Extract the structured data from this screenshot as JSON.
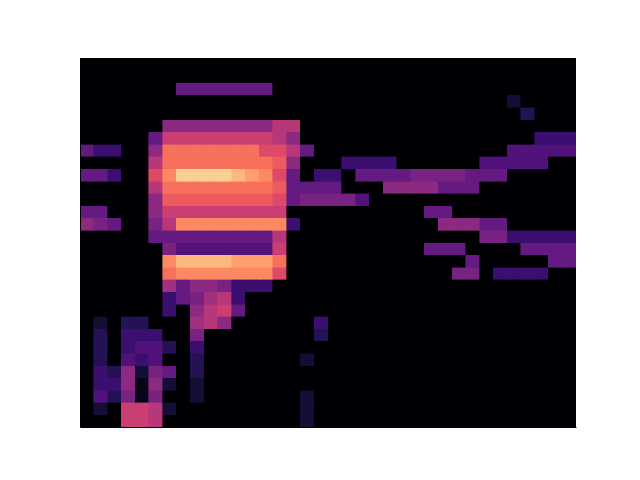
{
  "chart_data": {
    "type": "heatmap",
    "color": "magma",
    "zlim": [
      0,
      1
    ],
    "xlim": [
      0,
      36
    ],
    "ylim": [
      0,
      30
    ],
    "xticks": [],
    "yticks": [],
    "tick_labels": false,
    "z": [
      [
        0,
        0,
        0,
        0.55,
        0.55,
        0.5,
        0,
        0,
        0,
        0,
        0,
        0,
        0,
        0,
        0,
        0,
        0.1,
        0,
        0,
        0,
        0,
        0,
        0,
        0,
        0,
        0,
        0,
        0,
        0,
        0,
        0,
        0,
        0,
        0,
        0,
        0
      ],
      [
        0,
        0.1,
        0,
        0.55,
        0.55,
        0.5,
        0.1,
        0,
        0,
        0,
        0,
        0,
        0,
        0,
        0,
        0,
        0.1,
        0,
        0,
        0,
        0,
        0,
        0,
        0,
        0,
        0,
        0,
        0,
        0,
        0,
        0,
        0,
        0,
        0,
        0,
        0
      ],
      [
        0,
        0.25,
        0.15,
        0.35,
        0.05,
        0.35,
        0,
        0,
        0.1,
        0,
        0,
        0,
        0,
        0,
        0,
        0,
        0.1,
        0,
        0,
        0,
        0,
        0,
        0,
        0,
        0,
        0,
        0,
        0,
        0,
        0,
        0,
        0,
        0,
        0,
        0,
        0
      ],
      [
        0,
        0.2,
        0.2,
        0.4,
        0.05,
        0.4,
        0.1,
        0,
        0.1,
        0,
        0,
        0,
        0,
        0,
        0,
        0,
        0,
        0,
        0,
        0,
        0,
        0,
        0,
        0,
        0,
        0,
        0,
        0,
        0,
        0,
        0,
        0,
        0,
        0,
        0,
        0
      ],
      [
        0,
        0.2,
        0.15,
        0.4,
        0.1,
        0.35,
        0.3,
        0,
        0.15,
        0,
        0,
        0,
        0,
        0,
        0,
        0,
        0,
        0,
        0,
        0,
        0,
        0,
        0,
        0,
        0,
        0,
        0,
        0,
        0,
        0,
        0,
        0,
        0,
        0,
        0,
        0
      ],
      [
        0,
        0.15,
        0,
        0.25,
        0.2,
        0.25,
        0,
        0,
        0.15,
        0,
        0,
        0,
        0,
        0,
        0,
        0,
        0.1,
        0,
        0,
        0,
        0,
        0,
        0,
        0,
        0,
        0,
        0,
        0,
        0,
        0,
        0,
        0,
        0,
        0,
        0,
        0
      ],
      [
        0,
        0.15,
        0,
        0.2,
        0.25,
        0.25,
        0.15,
        0,
        0.2,
        0,
        0,
        0,
        0,
        0,
        0,
        0,
        0,
        0,
        0,
        0,
        0,
        0,
        0,
        0,
        0,
        0,
        0,
        0,
        0,
        0,
        0,
        0,
        0,
        0,
        0,
        0
      ],
      [
        0,
        0.15,
        0,
        0.2,
        0.2,
        0.2,
        0,
        0,
        0.35,
        0,
        0,
        0,
        0,
        0,
        0,
        0,
        0,
        0.15,
        0,
        0,
        0,
        0,
        0,
        0,
        0,
        0,
        0,
        0,
        0,
        0,
        0,
        0,
        0,
        0,
        0,
        0
      ],
      [
        0,
        0.1,
        0,
        0.15,
        0.15,
        0,
        0,
        0,
        0.45,
        0.5,
        0.4,
        0,
        0,
        0,
        0,
        0,
        0,
        0.2,
        0,
        0,
        0,
        0,
        0,
        0,
        0,
        0,
        0,
        0,
        0,
        0,
        0,
        0,
        0,
        0,
        0,
        0
      ],
      [
        0,
        0,
        0,
        0,
        0,
        0,
        0.2,
        0,
        0.4,
        0.5,
        0.55,
        0.3,
        0,
        0,
        0,
        0,
        0,
        0,
        0,
        0,
        0,
        0,
        0,
        0,
        0,
        0,
        0,
        0,
        0,
        0,
        0,
        0,
        0,
        0,
        0,
        0
      ],
      [
        0,
        0,
        0,
        0,
        0,
        0,
        0.2,
        0.3,
        0.35,
        0.45,
        0.5,
        0.2,
        0,
        0,
        0,
        0,
        0,
        0,
        0,
        0,
        0,
        0,
        0,
        0,
        0,
        0,
        0,
        0,
        0,
        0,
        0,
        0,
        0,
        0,
        0,
        0
      ],
      [
        0,
        0,
        0,
        0,
        0,
        0,
        0.45,
        0.3,
        0.4,
        0.4,
        0.35,
        0.2,
        0.2,
        0.2,
        0,
        0,
        0,
        0,
        0,
        0,
        0,
        0,
        0,
        0,
        0,
        0,
        0,
        0,
        0,
        0,
        0,
        0,
        0,
        0,
        0,
        0
      ],
      [
        0,
        0,
        0,
        0,
        0,
        0,
        0.7,
        0.75,
        0.75,
        0.75,
        0.75,
        0.75,
        0.75,
        0.75,
        0.6,
        0,
        0,
        0,
        0,
        0,
        0,
        0,
        0,
        0,
        0,
        0,
        0,
        0.35,
        0.35,
        0,
        0.2,
        0.2,
        0.2,
        0.2,
        0,
        0
      ],
      [
        0,
        0,
        0,
        0,
        0,
        0,
        0.75,
        0.85,
        0.85,
        0.85,
        0.85,
        0.8,
        0.8,
        0.8,
        0.7,
        0,
        0,
        0,
        0,
        0,
        0,
        0,
        0,
        0,
        0,
        0,
        0,
        0,
        0.3,
        0,
        0,
        0,
        0,
        0,
        0.3,
        0.3
      ],
      [
        0,
        0,
        0,
        0,
        0,
        0,
        0.35,
        0.25,
        0.25,
        0.25,
        0.25,
        0.25,
        0.25,
        0.25,
        0.55,
        0,
        0,
        0,
        0,
        0,
        0,
        0,
        0,
        0,
        0,
        0.3,
        0.3,
        0.3,
        0,
        0,
        0,
        0,
        0.3,
        0.3,
        0.3,
        0.3
      ],
      [
        0,
        0,
        0,
        0,
        0,
        0.3,
        0.3,
        0.3,
        0.3,
        0.3,
        0.3,
        0.3,
        0.3,
        0.3,
        0.5,
        0,
        0,
        0,
        0,
        0,
        0,
        0,
        0,
        0,
        0,
        0,
        0,
        0,
        0,
        0.35,
        0.35,
        0.2,
        0.2,
        0.2,
        0.2,
        0.2
      ],
      [
        0.4,
        0.35,
        0.3,
        0,
        0,
        0.35,
        0.5,
        0.75,
        0.75,
        0.75,
        0.75,
        0.75,
        0.75,
        0.75,
        0.75,
        0.2,
        0,
        0,
        0,
        0,
        0,
        0,
        0,
        0,
        0,
        0,
        0.4,
        0.4,
        0.4,
        0.3,
        0.3,
        0,
        0,
        0,
        0,
        0
      ],
      [
        0.3,
        0.3,
        0,
        0,
        0,
        0.4,
        0.55,
        0.55,
        0.55,
        0.55,
        0.55,
        0.55,
        0.55,
        0.55,
        0.55,
        0,
        0,
        0,
        0,
        0,
        0,
        0,
        0,
        0,
        0,
        0.3,
        0.3,
        0,
        0,
        0,
        0,
        0,
        0,
        0,
        0,
        0
      ],
      [
        0,
        0,
        0,
        0,
        0,
        0.4,
        0.65,
        0.65,
        0.65,
        0.65,
        0.65,
        0.65,
        0.65,
        0.65,
        0.6,
        0.3,
        0.35,
        0.35,
        0.35,
        0.35,
        0.25,
        0,
        0,
        0,
        0,
        0,
        0,
        0,
        0,
        0,
        0,
        0,
        0,
        0,
        0,
        0
      ],
      [
        0,
        0,
        0,
        0,
        0,
        0.5,
        0.7,
        0.7,
        0.7,
        0.7,
        0.7,
        0.7,
        0.7,
        0.7,
        0.65,
        0.3,
        0.3,
        0.3,
        0.3,
        0,
        0,
        0,
        0.4,
        0.4,
        0.4,
        0.4,
        0.3,
        0.3,
        0.3,
        0,
        0,
        0,
        0,
        0,
        0,
        0
      ],
      [
        0.3,
        0.3,
        0.2,
        0,
        0,
        0.6,
        0.75,
        0.9,
        0.9,
        0.9,
        0.9,
        0.85,
        0.8,
        0.75,
        0.6,
        0.3,
        0,
        0.2,
        0.2,
        0,
        0.3,
        0.3,
        0.3,
        0.3,
        0.35,
        0.35,
        0.35,
        0.35,
        0.3,
        0.3,
        0.3,
        0,
        0,
        0,
        0,
        0
      ],
      [
        0,
        0,
        0,
        0,
        0,
        0.5,
        0.7,
        0.7,
        0.7,
        0.7,
        0.7,
        0.7,
        0.7,
        0.7,
        0.65,
        0.4,
        0,
        0,
        0,
        0.2,
        0.2,
        0.2,
        0.2,
        0,
        0,
        0,
        0,
        0,
        0,
        0.25,
        0.25,
        0.25,
        0.25,
        0.25,
        0,
        0
      ],
      [
        0.3,
        0.2,
        0.2,
        0,
        0,
        0.4,
        0.7,
        0.7,
        0.7,
        0.7,
        0.7,
        0.7,
        0.7,
        0.6,
        0.6,
        0.5,
        0.3,
        0,
        0,
        0,
        0,
        0,
        0,
        0,
        0,
        0,
        0,
        0,
        0,
        0,
        0,
        0.25,
        0.25,
        0.25,
        0.25,
        0.25
      ],
      [
        0,
        0,
        0,
        0,
        0,
        0.3,
        0.55,
        0.55,
        0.55,
        0.55,
        0.55,
        0.55,
        0.55,
        0.55,
        0.5,
        0.4,
        0,
        0,
        0,
        0,
        0,
        0,
        0,
        0,
        0,
        0,
        0,
        0,
        0,
        0,
        0,
        0,
        0,
        0.2,
        0.2,
        0.2
      ],
      [
        0,
        0,
        0,
        0,
        0,
        0,
        0.4,
        0.4,
        0.4,
        0.4,
        0.4,
        0.4,
        0.4,
        0.4,
        0.5,
        0.5,
        0,
        0,
        0,
        0,
        0,
        0,
        0,
        0,
        0,
        0,
        0,
        0,
        0,
        0,
        0,
        0,
        0,
        0,
        0,
        0
      ],
      [
        0,
        0,
        0,
        0,
        0,
        0,
        0,
        0,
        0,
        0,
        0,
        0,
        0,
        0,
        0,
        0,
        0,
        0,
        0,
        0,
        0,
        0,
        0,
        0,
        0,
        0,
        0,
        0,
        0,
        0,
        0,
        0,
        0.15,
        0,
        0,
        0
      ],
      [
        0,
        0,
        0,
        0,
        0,
        0,
        0,
        0,
        0,
        0,
        0,
        0,
        0,
        0,
        0,
        0,
        0,
        0,
        0,
        0,
        0,
        0,
        0,
        0,
        0,
        0,
        0,
        0,
        0,
        0,
        0,
        0.1,
        0,
        0,
        0,
        0
      ],
      [
        0,
        0,
        0,
        0,
        0,
        0,
        0,
        0.3,
        0.3,
        0.3,
        0.3,
        0.3,
        0.3,
        0.3,
        0,
        0,
        0,
        0,
        0,
        0,
        0,
        0,
        0,
        0,
        0,
        0,
        0,
        0,
        0,
        0,
        0,
        0,
        0,
        0,
        0,
        0
      ],
      [
        0,
        0,
        0,
        0,
        0,
        0,
        0,
        0,
        0,
        0,
        0,
        0,
        0,
        0,
        0,
        0,
        0,
        0,
        0,
        0,
        0,
        0,
        0,
        0,
        0,
        0,
        0,
        0,
        0,
        0,
        0,
        0,
        0,
        0,
        0,
        0
      ],
      [
        0,
        0,
        0,
        0,
        0,
        0,
        0,
        0,
        0,
        0,
        0,
        0,
        0,
        0,
        0,
        0,
        0,
        0,
        0,
        0,
        0,
        0,
        0,
        0,
        0,
        0,
        0,
        0,
        0,
        0,
        0,
        0,
        0,
        0,
        0,
        0
      ]
    ]
  }
}
